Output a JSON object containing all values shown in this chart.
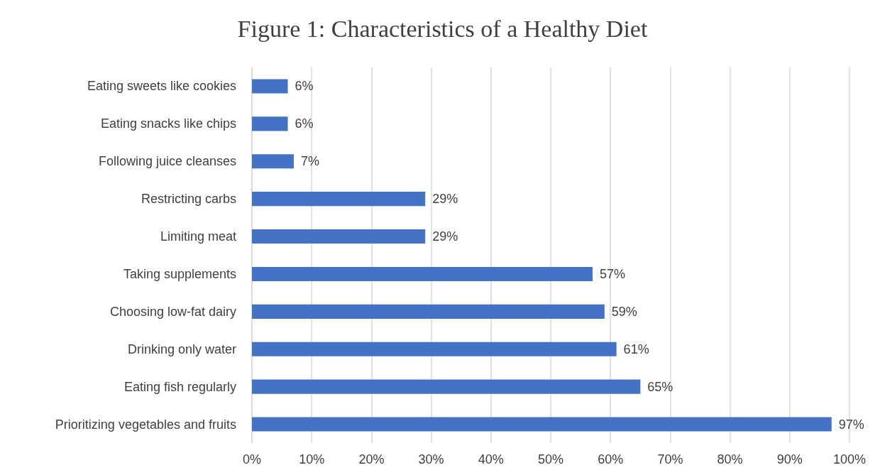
{
  "chart_data": {
    "type": "bar",
    "title": "Figure 1: Characteristics of a Healthy Diet",
    "orientation": "horizontal",
    "categories": [
      "Eating sweets like cookies",
      "Eating snacks like chips",
      "Following juice cleanses",
      "Restricting carbs",
      "Limiting meat",
      "Taking supplements",
      "Choosing low-fat dairy",
      "Drinking only water",
      "Eating fish regularly",
      "Prioritizing vegetables and fruits"
    ],
    "values": [
      6,
      6,
      7,
      29,
      29,
      57,
      59,
      61,
      65,
      97
    ],
    "value_labels": [
      "6%",
      "6%",
      "7%",
      "29%",
      "29%",
      "57%",
      "59%",
      "61%",
      "65%",
      "97%"
    ],
    "color": "#4472c4",
    "xlim": [
      0,
      100
    ],
    "xticks": [
      {
        "value": 0,
        "label": "0%"
      },
      {
        "value": 10,
        "label": "10%"
      },
      {
        "value": 20,
        "label": "20%"
      },
      {
        "value": 30,
        "label": "30%"
      },
      {
        "value": 40,
        "label": "40%"
      },
      {
        "value": 50,
        "label": "50%"
      },
      {
        "value": 60,
        "label": "60%"
      },
      {
        "value": 70,
        "label": "70%"
      },
      {
        "value": 80,
        "label": "80%"
      },
      {
        "value": 90,
        "label": "90%"
      },
      {
        "value": 100,
        "label": "100%"
      }
    ],
    "grid": "x"
  }
}
